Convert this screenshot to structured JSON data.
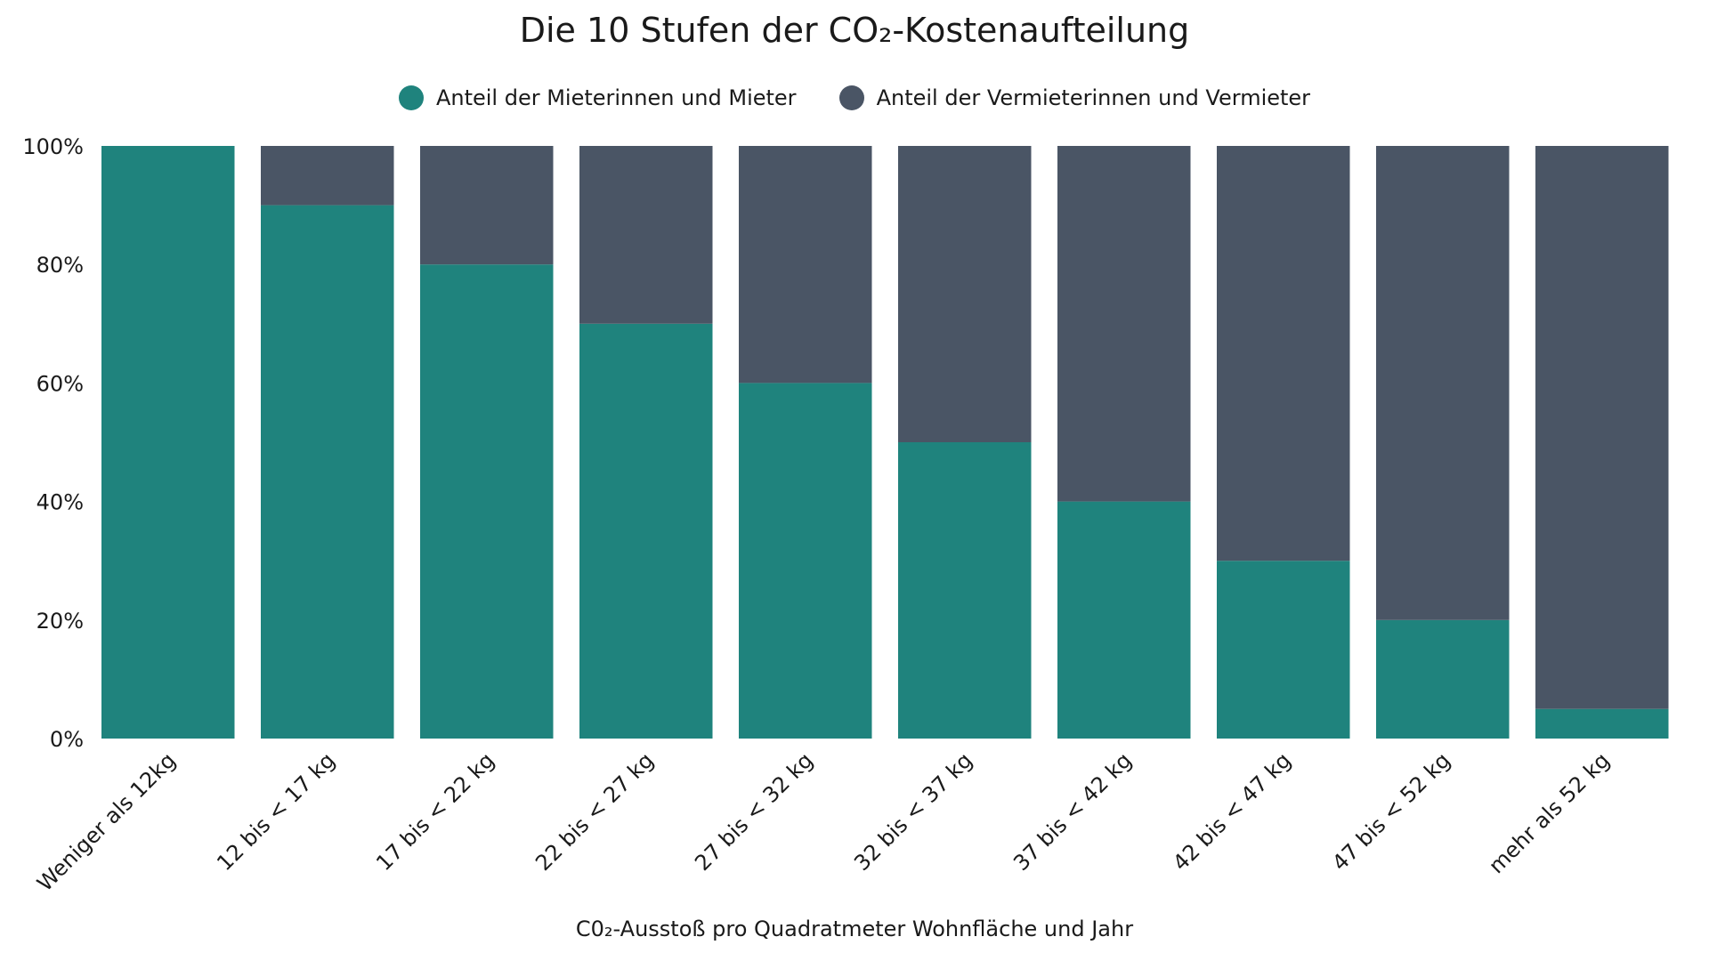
{
  "chart_data": {
    "type": "bar",
    "stacked": true,
    "title": "Die 10 Stufen der CO₂-Kostenaufteilung",
    "xlabel": "C0₂-Ausstoß pro Quadratmeter Wohnfläche und Jahr",
    "ylabel": "",
    "ylim": [
      0,
      100
    ],
    "yticks": [
      "0%",
      "20%",
      "40%",
      "60%",
      "80%",
      "100%"
    ],
    "ytick_values": [
      0,
      20,
      40,
      60,
      80,
      100
    ],
    "categories": [
      "Weniger als 12kg",
      "12 bis < 17 kg",
      "17 bis < 22 kg",
      "22 bis < 27 kg",
      "27 bis < 32 kg",
      "32 bis < 37 kg",
      "37 bis < 42 kg",
      "42 bis < 47 kg",
      "47 bis < 52 kg",
      "mehr als 52 kg"
    ],
    "series": [
      {
        "name": "Anteil der Mieterinnen und Mieter",
        "color": "#1f837d",
        "values": [
          100,
          90,
          80,
          70,
          60,
          50,
          40,
          30,
          20,
          5
        ]
      },
      {
        "name": "Anteil der Vermieterinnen und Vermieter",
        "color": "#4a5565",
        "values": [
          0,
          10,
          20,
          30,
          40,
          50,
          60,
          70,
          80,
          95
        ]
      }
    ],
    "legend_position": "top-center",
    "grid": false
  }
}
